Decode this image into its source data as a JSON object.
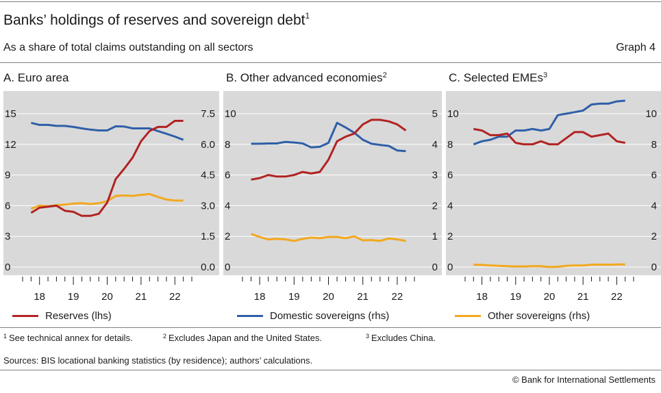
{
  "title": "Banks’ holdings of reserves and sovereign debt",
  "title_note": "1",
  "subtitle": "As a share of total claims outstanding on all sectors",
  "graph_number": "Graph 4",
  "legend": [
    {
      "label": "Reserves (lhs)",
      "color": "#b22222"
    },
    {
      "label": "Domestic sovereigns (rhs)",
      "color": "#2e5fa8"
    },
    {
      "label": "Other sovereigns (rhs)",
      "color": "#f2a81d"
    }
  ],
  "notes": [
    {
      "mark": "1",
      "text": "See technical annex for details."
    },
    {
      "mark": "2",
      "text": "Excludes Japan and the United States."
    },
    {
      "mark": "3",
      "text": "Excludes China."
    }
  ],
  "sources": "Sources: BIS locational banking statistics (by residence); authors’ calculations.",
  "copyright": "© Bank for International Settlements",
  "chart_data": [
    {
      "type": "line",
      "title": "A. Euro area",
      "title_note": "",
      "x": [
        2017.75,
        2018.0,
        2018.25,
        2018.5,
        2018.75,
        2019.0,
        2019.25,
        2019.5,
        2019.75,
        2020.0,
        2020.25,
        2020.5,
        2020.75,
        2021.0,
        2021.25,
        2021.5,
        2021.75,
        2022.0,
        2022.25
      ],
      "x_ticks": [
        "18",
        "19",
        "20",
        "21",
        "22"
      ],
      "y_left_ticks": [
        "0",
        "3",
        "6",
        "9",
        "12",
        "15"
      ],
      "y_left_lim": [
        0,
        15
      ],
      "y_right_ticks": [
        "0.0",
        "1.5",
        "3.0",
        "4.5",
        "6.0",
        "7.5"
      ],
      "y_right_lim": [
        0,
        7.5
      ],
      "series": [
        {
          "name": "Reserves (lhs)",
          "axis": "left",
          "color": "#b22222",
          "values": [
            5.3,
            5.8,
            5.9,
            6.0,
            5.5,
            5.4,
            5.0,
            5.0,
            5.2,
            6.3,
            8.6,
            9.6,
            10.7,
            12.3,
            13.3,
            13.7,
            13.7,
            14.3,
            14.3
          ]
        },
        {
          "name": "Domestic sovereigns (rhs)",
          "axis": "right",
          "color": "#2e5fa8",
          "values": [
            7.05,
            6.95,
            6.95,
            6.9,
            6.9,
            6.85,
            6.78,
            6.72,
            6.68,
            6.68,
            6.88,
            6.87,
            6.78,
            6.78,
            6.78,
            6.65,
            6.52,
            6.38,
            6.22
          ]
        },
        {
          "name": "Other sovereigns (rhs)",
          "axis": "right",
          "color": "#f2a81d",
          "values": [
            2.85,
            3.0,
            2.97,
            3.02,
            3.05,
            3.1,
            3.12,
            3.08,
            3.12,
            3.22,
            3.48,
            3.5,
            3.48,
            3.53,
            3.57,
            3.43,
            3.3,
            3.25,
            3.25
          ]
        }
      ]
    },
    {
      "type": "line",
      "title": "B. Other advanced economies",
      "title_note": "2",
      "x": [
        2017.75,
        2018.0,
        2018.25,
        2018.5,
        2018.75,
        2019.0,
        2019.25,
        2019.5,
        2019.75,
        2020.0,
        2020.25,
        2020.5,
        2020.75,
        2021.0,
        2021.25,
        2021.5,
        2021.75,
        2022.0,
        2022.25
      ],
      "x_ticks": [
        "18",
        "19",
        "20",
        "21",
        "22"
      ],
      "y_left_ticks": [
        "0",
        "2",
        "4",
        "6",
        "8",
        "10"
      ],
      "y_left_lim": [
        0,
        10
      ],
      "y_right_ticks": [
        "0",
        "1",
        "2",
        "3",
        "4",
        "5"
      ],
      "y_right_lim": [
        0,
        5
      ],
      "series": [
        {
          "name": "Reserves (lhs)",
          "axis": "left",
          "color": "#b22222",
          "values": [
            5.7,
            5.8,
            6.0,
            5.9,
            5.9,
            6.0,
            6.2,
            6.1,
            6.2,
            7.0,
            8.2,
            8.5,
            8.7,
            9.3,
            9.6,
            9.6,
            9.5,
            9.3,
            8.9
          ]
        },
        {
          "name": "Domestic sovereigns (rhs)",
          "axis": "right",
          "color": "#2e5fa8",
          "values": [
            4.02,
            4.02,
            4.03,
            4.03,
            4.08,
            4.06,
            4.03,
            3.9,
            3.92,
            4.05,
            4.7,
            4.55,
            4.38,
            4.15,
            4.02,
            3.98,
            3.95,
            3.8,
            3.78
          ]
        },
        {
          "name": "Other sovereigns (rhs)",
          "axis": "right",
          "color": "#f2a81d",
          "values": [
            1.08,
            0.98,
            0.9,
            0.92,
            0.9,
            0.85,
            0.92,
            0.96,
            0.94,
            0.98,
            0.98,
            0.94,
            1.0,
            0.87,
            0.88,
            0.85,
            0.93,
            0.9,
            0.85
          ]
        }
      ]
    },
    {
      "type": "line",
      "title": "C. Selected EMEs",
      "title_note": "3",
      "x": [
        2017.75,
        2018.0,
        2018.25,
        2018.5,
        2018.75,
        2019.0,
        2019.25,
        2019.5,
        2019.75,
        2020.0,
        2020.25,
        2020.5,
        2020.75,
        2021.0,
        2021.25,
        2021.5,
        2021.75,
        2022.0,
        2022.25
      ],
      "x_ticks": [
        "18",
        "19",
        "20",
        "21",
        "22"
      ],
      "y_left_ticks": [
        "0",
        "2",
        "4",
        "6",
        "8",
        "10"
      ],
      "y_left_lim": [
        0,
        10
      ],
      "y_right_ticks": [
        "0",
        "2",
        "4",
        "6",
        "8",
        "10"
      ],
      "y_right_lim": [
        0,
        10
      ],
      "series": [
        {
          "name": "Reserves (lhs)",
          "axis": "left",
          "color": "#b22222",
          "values": [
            9.0,
            8.9,
            8.6,
            8.6,
            8.7,
            8.1,
            8.0,
            8.0,
            8.2,
            8.0,
            8.0,
            8.4,
            8.8,
            8.8,
            8.5,
            8.6,
            8.7,
            8.2,
            8.1
          ]
        },
        {
          "name": "Domestic sovereigns (rhs)",
          "axis": "right",
          "color": "#2e5fa8",
          "values": [
            8.0,
            8.2,
            8.3,
            8.5,
            8.5,
            8.9,
            8.9,
            9.0,
            8.9,
            9.0,
            9.9,
            10.0,
            10.1,
            10.2,
            10.6,
            10.65,
            10.65,
            10.8,
            10.85
          ]
        },
        {
          "name": "Other sovereigns (rhs)",
          "axis": "right",
          "color": "#f2a81d",
          "values": [
            0.15,
            0.14,
            0.1,
            0.08,
            0.06,
            0.04,
            0.04,
            0.06,
            0.06,
            0.0,
            0.02,
            0.08,
            0.1,
            0.1,
            0.15,
            0.16,
            0.15,
            0.17,
            0.17
          ]
        }
      ]
    }
  ]
}
